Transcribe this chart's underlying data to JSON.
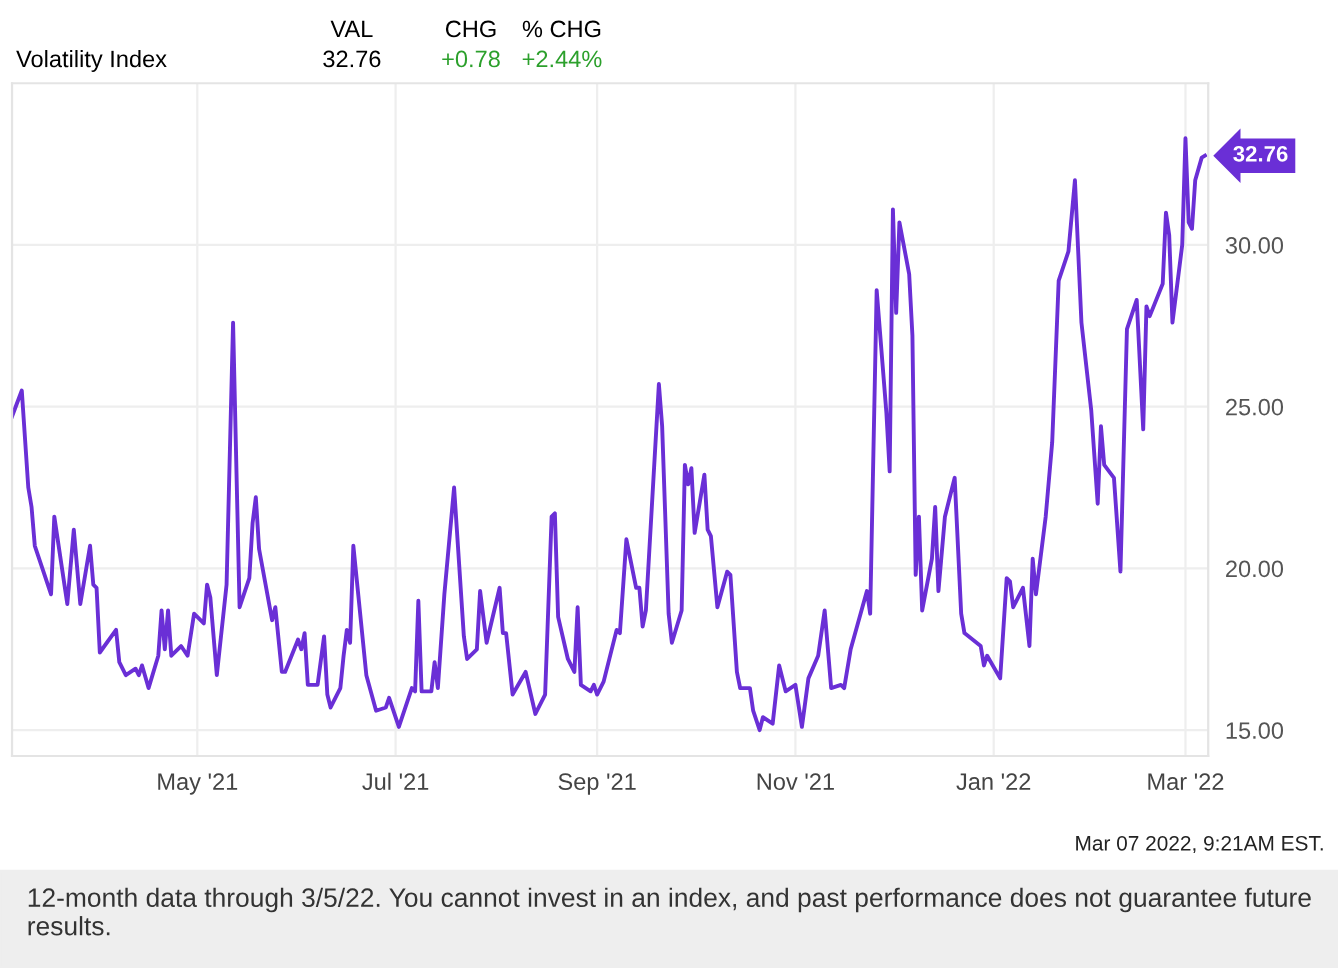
{
  "chart_data": {
    "type": "line",
    "annotations": [
      "Volatility Index",
      "VAL",
      "CHG",
      "% CHG",
      "32.76",
      "+0.78",
      "+2.44%",
      "Mar 07 2022, 9:21AM EST.",
      "12-month data through 3/5/22. You cannot invest in an index, and past performance does not guarantee future results.",
      {
        "text": "32.76",
        "x": "2022-03-07",
        "y": 32.76
      }
    ],
    "xlim": [
      "2021-03-05",
      "2022-03-08"
    ],
    "xticks": [
      {
        "value": "2021-05-01",
        "label": "May '21"
      },
      {
        "value": "2021-07-01",
        "label": "Jul '21"
      },
      {
        "value": "2021-09-01",
        "label": "Sep '21"
      },
      {
        "value": "2021-11-01",
        "label": "Nov '21"
      },
      {
        "value": "2022-01-01",
        "label": "Jan '22"
      },
      {
        "value": "2022-03-01",
        "label": "Mar '22"
      }
    ],
    "ylim": [
      14.2,
      35
    ],
    "yticks": [
      {
        "value": 15,
        "label": "15.00"
      },
      {
        "value": 20,
        "label": "20.00"
      },
      {
        "value": 25,
        "label": "25.00"
      },
      {
        "value": 30,
        "label": "30.00"
      }
    ],
    "grid": true,
    "legend": false,
    "series": [
      {
        "color": "#6a2fd6",
        "x": [
          "2021-03-05",
          "2021-03-08",
          "2021-03-10",
          "2021-03-11",
          "2021-03-12",
          "2021-03-15",
          "2021-03-17",
          "2021-03-18",
          "2021-03-22",
          "2021-03-24",
          "2021-03-26",
          "2021-03-29",
          "2021-03-30",
          "2021-03-31",
          "2021-04-01",
          "2021-04-06",
          "2021-04-07",
          "2021-04-09",
          "2021-04-12",
          "2021-04-13",
          "2021-04-14",
          "2021-04-16",
          "2021-04-19",
          "2021-04-20",
          "2021-04-21",
          "2021-04-22",
          "2021-04-23",
          "2021-04-26",
          "2021-04-28",
          "2021-04-30",
          "2021-05-03",
          "2021-05-04",
          "2021-05-05",
          "2021-05-07",
          "2021-05-10",
          "2021-05-12",
          "2021-05-14",
          "2021-05-17",
          "2021-05-18",
          "2021-05-19",
          "2021-05-20",
          "2021-05-24",
          "2021-05-25",
          "2021-05-27",
          "2021-05-28",
          "2021-06-01",
          "2021-06-02",
          "2021-06-03",
          "2021-06-04",
          "2021-06-07",
          "2021-06-09",
          "2021-06-10",
          "2021-06-11",
          "2021-06-14",
          "2021-06-15",
          "2021-06-16",
          "2021-06-17",
          "2021-06-18",
          "2021-06-22",
          "2021-06-25",
          "2021-06-28",
          "2021-06-29",
          "2021-07-02",
          "2021-07-06",
          "2021-07-07",
          "2021-07-08",
          "2021-07-09",
          "2021-07-12",
          "2021-07-13",
          "2021-07-14",
          "2021-07-16",
          "2021-07-19",
          "2021-07-22",
          "2021-07-23",
          "2021-07-26",
          "2021-07-27",
          "2021-07-29",
          "2021-08-02",
          "2021-08-03",
          "2021-08-04",
          "2021-08-06",
          "2021-08-10",
          "2021-08-13",
          "2021-08-16",
          "2021-08-18",
          "2021-08-19",
          "2021-08-20",
          "2021-08-23",
          "2021-08-25",
          "2021-08-26",
          "2021-08-27",
          "2021-08-30",
          "2021-08-31",
          "2021-09-01",
          "2021-09-03",
          "2021-09-07",
          "2021-09-08",
          "2021-09-10",
          "2021-09-13",
          "2021-09-14",
          "2021-09-15",
          "2021-09-16",
          "2021-09-20",
          "2021-09-21",
          "2021-09-23",
          "2021-09-24",
          "2021-09-27",
          "2021-09-28",
          "2021-09-29",
          "2021-09-30",
          "2021-10-01",
          "2021-10-04",
          "2021-10-05",
          "2021-10-06",
          "2021-10-08",
          "2021-10-11",
          "2021-10-12",
          "2021-10-14",
          "2021-10-15",
          "2021-10-18",
          "2021-10-19",
          "2021-10-21",
          "2021-10-22",
          "2021-10-25",
          "2021-10-27",
          "2021-10-29",
          "2021-11-01",
          "2021-11-03",
          "2021-11-05",
          "2021-11-08",
          "2021-11-10",
          "2021-11-12",
          "2021-11-15",
          "2021-11-16",
          "2021-11-18",
          "2021-11-23",
          "2021-11-24",
          "2021-11-26",
          "2021-11-29",
          "2021-11-30",
          "2021-12-01",
          "2021-12-02",
          "2021-12-03",
          "2021-12-06",
          "2021-12-07",
          "2021-12-08",
          "2021-12-09",
          "2021-12-10",
          "2021-12-13",
          "2021-12-14",
          "2021-12-15",
          "2021-12-17",
          "2021-12-20",
          "2021-12-22",
          "2021-12-23",
          "2021-12-28",
          "2021-12-29",
          "2021-12-30",
          "2022-01-03",
          "2022-01-05",
          "2022-01-06",
          "2022-01-07",
          "2022-01-10",
          "2022-01-12",
          "2022-01-13",
          "2022-01-14",
          "2022-01-17",
          "2022-01-19",
          "2022-01-21",
          "2022-01-24",
          "2022-01-26",
          "2022-01-28",
          "2022-01-31",
          "2022-02-02",
          "2022-02-03",
          "2022-02-04",
          "2022-02-07",
          "2022-02-09",
          "2022-02-11",
          "2022-02-14",
          "2022-02-16",
          "2022-02-17",
          "2022-02-18",
          "2022-02-22",
          "2022-02-23",
          "2022-02-24",
          "2022-02-25",
          "2022-02-28",
          "2022-03-01",
          "2022-03-02",
          "2022-03-03",
          "2022-03-04",
          "2022-03-06",
          "2022-03-07"
        ],
        "values": [
          24.7,
          25.5,
          22.5,
          21.9,
          20.7,
          19.8,
          19.2,
          21.6,
          18.9,
          21.2,
          18.9,
          20.7,
          19.5,
          19.4,
          17.4,
          18.1,
          17.1,
          16.7,
          16.9,
          16.7,
          17.0,
          16.3,
          17.3,
          18.7,
          17.5,
          18.7,
          17.3,
          17.6,
          17.3,
          18.6,
          18.3,
          19.5,
          19.1,
          16.7,
          19.5,
          27.6,
          18.8,
          19.7,
          21.4,
          22.2,
          20.6,
          18.4,
          18.8,
          16.8,
          16.8,
          17.8,
          17.5,
          18.0,
          16.4,
          16.4,
          17.9,
          16.1,
          15.7,
          16.3,
          17.3,
          18.1,
          17.7,
          20.7,
          16.7,
          15.6,
          15.7,
          16.0,
          15.1,
          16.3,
          16.2,
          19.0,
          16.2,
          16.2,
          17.1,
          16.3,
          19.2,
          22.5,
          17.9,
          17.2,
          17.5,
          19.3,
          17.7,
          19.4,
          18.0,
          18.0,
          16.1,
          16.8,
          15.5,
          16.1,
          21.6,
          21.7,
          18.5,
          17.2,
          16.8,
          18.8,
          16.4,
          16.2,
          16.4,
          16.1,
          16.5,
          18.1,
          18.0,
          20.9,
          19.4,
          19.4,
          18.2,
          18.7,
          25.7,
          24.4,
          18.6,
          17.7,
          18.7,
          23.2,
          22.6,
          23.1,
          21.1,
          22.9,
          21.2,
          21.0,
          18.8,
          19.9,
          19.8,
          16.8,
          16.3,
          16.3,
          15.6,
          15.0,
          15.4,
          15.2,
          17.0,
          16.2,
          16.4,
          15.1,
          16.6,
          17.3,
          18.7,
          16.3,
          16.4,
          16.3,
          17.5,
          19.3,
          18.6,
          28.6,
          24.8,
          23.0,
          31.1,
          27.9,
          30.7,
          29.1,
          27.2,
          19.8,
          21.6,
          18.7,
          20.3,
          21.9,
          19.3,
          21.6,
          22.8,
          18.6,
          18.0,
          17.6,
          17.0,
          17.3,
          16.6,
          19.7,
          19.6,
          18.8,
          19.4,
          17.6,
          20.3,
          19.2,
          21.6,
          23.9,
          28.9,
          29.8,
          32.0,
          27.6,
          24.9,
          22.0,
          24.4,
          23.2,
          22.8,
          19.9,
          27.4,
          28.3,
          24.3,
          28.1,
          27.8,
          28.8,
          31.0,
          30.3,
          27.6,
          30.0,
          33.3,
          30.7,
          30.5,
          32.0,
          32.7,
          32.76
        ]
      }
    ]
  }
}
